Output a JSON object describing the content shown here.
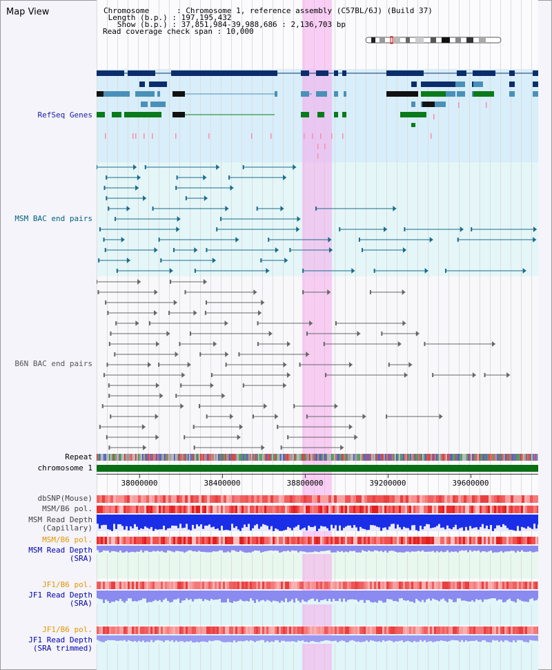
{
  "title": "Map View",
  "info": {
    "chromosome_key": "Chromosome",
    "chromosome_val": "Chromosome 1, reference assembly (C57BL/6J) (Build 37)",
    "length_key": "Length (b.p.)",
    "length_val": "197,195,432",
    "show_key": "Show (b.p.)",
    "show_val": "37,851,984-39,988,686 : 2,136,703 bp",
    "coverage_key": "Read coverage check span",
    "coverage_val": "10,000"
  },
  "labels": {
    "refseq": "RefSeq Genes",
    "msm_bac": "MSM BAC end pairs",
    "b6n_bac": "B6N BAC end pairs",
    "repeat": "Repeat",
    "chromosome": "chromosome 1",
    "dbsnp": "dbSNP(Mouse)",
    "msm_b6_pol_1": "MSM/B6 pol.",
    "msm_depth_cap_1": "MSM Read Depth",
    "msm_depth_cap_2": "(Capillary)",
    "msm_b6_pol_2": "MSM/B6 pol.",
    "msm_depth_sra_1": "MSM Read Depth",
    "msm_depth_sra_2": "(SRA)",
    "jf1_b6_pol_1": "JF1/B6 pol.",
    "jf1_depth_1": "JF1 Read Depth",
    "jf1_depth_2": "(SRA)",
    "jf1_b6_pol_2": "JF1/B6 pol.",
    "jf1_trim_1": "JF1 Read Depth",
    "jf1_trim_2": "(SRA trimmed)"
  },
  "axis": {
    "ticks": [
      "38000000",
      "38400000",
      "38800000",
      "39200000",
      "39600000"
    ]
  },
  "colors": {
    "refseq_label": "#1a1aa8",
    "msm_label": "#006080",
    "b6n_label": "#555555",
    "pol_label": "#e69500",
    "depth_label": "#0000aa",
    "gene_navy": "#0b2d6b",
    "gene_blue": "#4a90b8",
    "gene_green": "#0a7a1a",
    "msm_pair": "#1a6a8a",
    "b6n_pair": "#666666",
    "highlight": "#f5aaeb",
    "chromosome_bar": "#0a6e14"
  }
}
